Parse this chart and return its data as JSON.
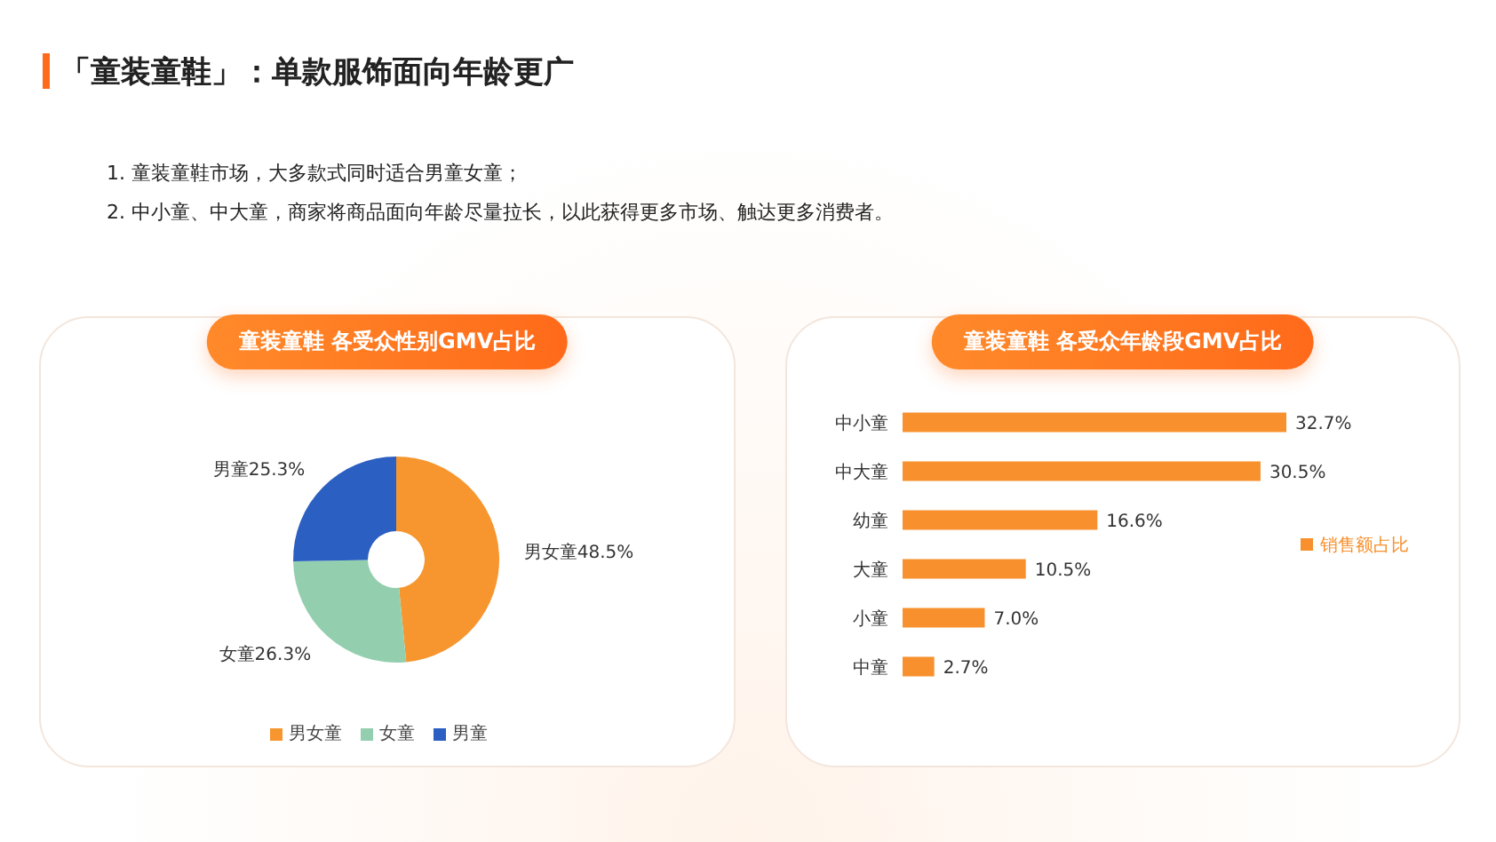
{
  "chart_data": [
    {
      "type": "donut",
      "title": "童装童鞋 各受众性别GMV占比",
      "annotations": [
        "「童装童鞋」：单款服饰面向年龄更广",
        "1.  童装童鞋市场，大多款式同时适合男童女童；",
        "2.  中小童、中大童，商家将商品面向年龄尽量拉长，以此获得更多市场、触达更多消费者。"
      ],
      "categories": [
        "男女童",
        "女童",
        "男童"
      ],
      "values": [
        48.5,
        26.3,
        25.3
      ],
      "colors": [
        "#f7962f",
        "#93cfae",
        "#2b5fc1"
      ],
      "value_labels": [
        "男女童48.5%",
        "女童26.3%",
        "男童25.3%"
      ],
      "legend": "bottom"
    },
    {
      "type": "bar",
      "orientation": "horizontal",
      "title": "童装童鞋 各受众年龄段GMV占比",
      "categories": [
        "中小童",
        "中大童",
        "幼童",
        "大童",
        "小童",
        "中童"
      ],
      "series": [
        {
          "name": "销售额占比",
          "color": "#f7902d",
          "values": [
            32.7,
            30.5,
            16.6,
            10.5,
            7.0,
            2.7
          ],
          "value_labels": [
            "32.7%",
            "30.5%",
            "16.6%",
            "10.5%",
            "7.0%",
            "2.7%"
          ]
        }
      ],
      "legend": "right"
    }
  ]
}
